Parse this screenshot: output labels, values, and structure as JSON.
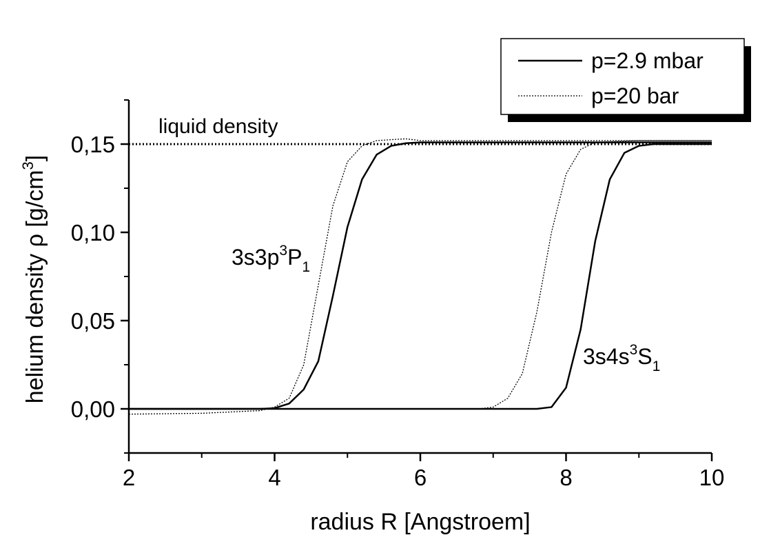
{
  "chart_data": {
    "type": "line",
    "x_label": "radius R [Angstroem]",
    "y_label": {
      "text": "helium density ρ [g/cm",
      "sup": "3",
      "end": "]"
    },
    "xlim": [
      2,
      10
    ],
    "ylim": [
      -0.025,
      0.175
    ],
    "xticks": [
      2,
      4,
      6,
      8,
      10
    ],
    "xminorticks": [
      3,
      5,
      7,
      9
    ],
    "yticks": [
      {
        "value": 0,
        "label": "0,00"
      },
      {
        "value": 0.05,
        "label": "0,05"
      },
      {
        "value": 0.1,
        "label": "0,10"
      },
      {
        "value": 0.15,
        "label": "0,15"
      }
    ],
    "yminorticks": [
      -0.025,
      0.025,
      0.075,
      0.125,
      0.175
    ],
    "reference_line": {
      "value": 0.15,
      "label": "liquid density"
    },
    "annotations": [
      {
        "text": "3s3p",
        "sup": "3",
        "base": "P",
        "sub": "1"
      },
      {
        "text": "3s4s",
        "sup": "3",
        "base": "S",
        "sub": "1"
      }
    ],
    "legend": "upper right",
    "series": [
      {
        "name": "p=2.9 mbar",
        "color": "#000000",
        "style": "solid",
        "lines": [
          {
            "x": [
              2,
              3,
              3.8,
              4,
              4.2,
              4.4,
              4.6,
              4.8,
              5.0,
              5.2,
              5.4,
              5.6,
              5.8,
              6,
              7,
              8,
              9,
              10
            ],
            "values": [
              0,
              0,
              0,
              0.0004,
              0.003,
              0.011,
              0.027,
              0.064,
              0.103,
              0.13,
              0.144,
              0.149,
              0.1505,
              0.151,
              0.151,
              0.151,
              0.151,
              0.151
            ]
          },
          {
            "x": [
              2,
              4,
              6,
              7,
              7.6,
              7.8,
              8.0,
              8.2,
              8.4,
              8.6,
              8.8,
              9.0,
              9.2,
              9.5,
              10
            ],
            "values": [
              0,
              0,
              0,
              0,
              0,
              0.001,
              0.012,
              0.045,
              0.095,
              0.13,
              0.145,
              0.149,
              0.15,
              0.15,
              0.15
            ]
          }
        ]
      },
      {
        "name": "p=20 bar",
        "color": "#000000",
        "style": "dotted",
        "lines": [
          {
            "x": [
              2,
              3,
              3.8,
              4,
              4.2,
              4.4,
              4.6,
              4.8,
              5.0,
              5.2,
              5.4,
              5.8,
              6,
              7,
              8,
              9,
              10
            ],
            "values": [
              -0.003,
              -0.0025,
              -0.001,
              0.001,
              0.006,
              0.025,
              0.07,
              0.115,
              0.14,
              0.149,
              0.152,
              0.153,
              0.152,
              0.152,
              0.152,
              0.152,
              0.152
            ]
          },
          {
            "x": [
              2,
              4,
              6,
              6.8,
              7.0,
              7.2,
              7.4,
              7.6,
              7.8,
              8.0,
              8.2,
              8.4,
              9,
              10
            ],
            "values": [
              0,
              0,
              0,
              0,
              0.001,
              0.006,
              0.02,
              0.055,
              0.1,
              0.133,
              0.147,
              0.151,
              0.152,
              0.152
            ]
          }
        ]
      }
    ]
  }
}
